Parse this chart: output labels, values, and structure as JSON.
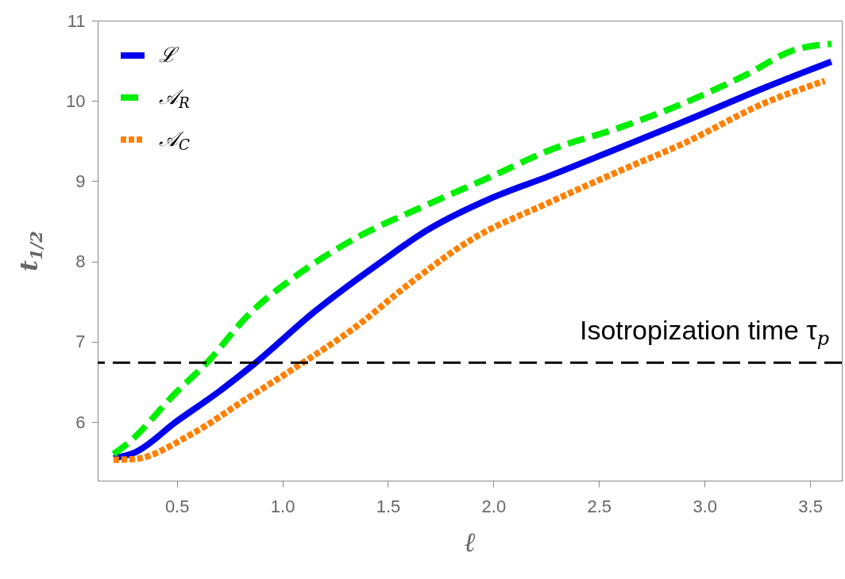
{
  "chart_data": {
    "type": "line",
    "xlabel": "ℓ",
    "ylabel": "t$_{1/2}$",
    "xlim": [
      0.125,
      3.65
    ],
    "ylim": [
      5.27,
      11
    ],
    "xticks": [
      0.5,
      {
        "value": 1,
        "label": "1.0"
      },
      1.5,
      {
        "value": 2,
        "label": "2.0"
      },
      2.5,
      {
        "value": 3,
        "label": "3.0"
      },
      3.5
    ],
    "yticks": [
      6,
      7,
      8,
      9,
      10,
      11
    ],
    "legend": "top left",
    "series": [
      {
        "name": "ℒ",
        "color": "#0000ee",
        "line_style": "solid",
        "x": [
          0.2,
          0.3,
          0.5,
          0.7,
          0.87,
          1.15,
          1.47,
          1.68,
          2.0,
          2.26,
          2.6,
          2.9,
          3.29,
          3.6
        ],
        "values": [
          5.55,
          5.62,
          6.01,
          6.38,
          6.73,
          7.37,
          8.0,
          8.38,
          8.8,
          9.06,
          9.42,
          9.74,
          10.17,
          10.49
        ]
      },
      {
        "name": "𝒜$_{R}$",
        "color": "#00ee00",
        "line_style": "dashed",
        "x": [
          0.2,
          0.27,
          0.49,
          0.65,
          0.83,
          1.08,
          1.34,
          1.68,
          2.0,
          2.26,
          2.6,
          2.9,
          3.2,
          3.42,
          3.6
        ],
        "values": [
          5.6,
          5.74,
          6.35,
          6.76,
          7.31,
          7.85,
          8.28,
          8.7,
          9.07,
          9.38,
          9.67,
          9.97,
          10.33,
          10.63,
          10.71
        ]
      },
      {
        "name": "𝒜$_{C}$",
        "color": "#ff8000",
        "line_style": "dotted",
        "x": [
          0.2,
          0.3,
          0.57,
          0.83,
          1.08,
          1.34,
          1.61,
          1.9,
          2.26,
          2.6,
          2.9,
          3.29,
          3.57
        ],
        "values": [
          5.53,
          5.54,
          5.85,
          6.29,
          6.71,
          7.17,
          7.74,
          8.28,
          8.73,
          9.13,
          9.47,
          9.98,
          10.25
        ]
      }
    ],
    "ref_lines": [
      {
        "axis": "y",
        "value": 6.74,
        "label": "Isotropization time τ$_{p}$",
        "color": "#000000",
        "line_style": "dashed"
      }
    ]
  }
}
